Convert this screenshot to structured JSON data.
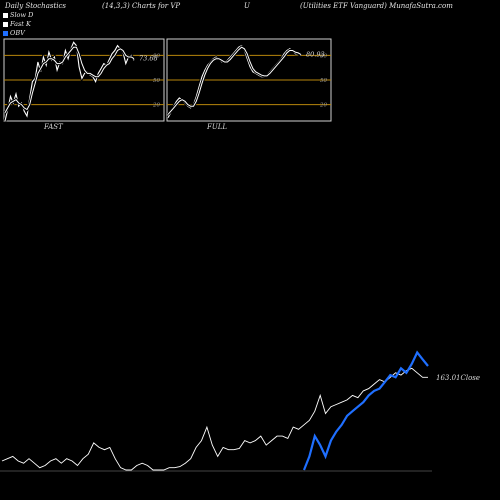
{
  "header": {
    "left": "Daily Stochastics",
    "params": "(14,3,3) Charts for VP",
    "ticker": "U",
    "right": "(Utilities ETF Vanguard) MunafaSutra.com"
  },
  "legend": [
    {
      "label": "Slow  D",
      "color": "#ffffff"
    },
    {
      "label": "Fast K",
      "color": "#ffffff"
    },
    {
      "label": "OBV",
      "color": "#1f6fff"
    }
  ],
  "chart_data": [
    {
      "type": "line",
      "title": "FAST",
      "ylim": [
        0,
        100
      ],
      "yticks": [
        "80",
        "50",
        "20"
      ],
      "reference_lines": [
        80,
        50,
        20
      ],
      "value_label": "73.68",
      "series": [
        {
          "values": [
            0,
            14,
            30,
            22,
            33,
            18,
            22,
            12,
            6,
            28,
            48,
            52,
            72,
            60,
            78,
            68,
            84,
            74,
            78,
            62,
            72,
            70,
            86,
            76,
            88,
            96,
            92,
            66,
            52,
            58,
            60,
            56,
            54,
            48,
            58,
            64,
            70,
            68,
            75,
            82,
            86,
            92,
            88,
            84,
            70,
            78,
            80,
            74
          ]
        },
        {
          "values": [
            10,
            16,
            22,
            24,
            26,
            22,
            20,
            16,
            14,
            20,
            34,
            46,
            58,
            64,
            70,
            72,
            76,
            76,
            74,
            70,
            70,
            72,
            78,
            82,
            86,
            90,
            90,
            82,
            70,
            62,
            58,
            58,
            56,
            54,
            54,
            58,
            64,
            68,
            70,
            76,
            80,
            86,
            88,
            86,
            80,
            78,
            78,
            76
          ]
        }
      ]
    },
    {
      "type": "line",
      "title": "FULL",
      "ylim": [
        0,
        100
      ],
      "yticks": [
        "80",
        "50",
        "20"
      ],
      "reference_lines": [
        80,
        50,
        20
      ],
      "value_label": "80.93",
      "series": [
        {
          "values": [
            4,
            10,
            18,
            24,
            28,
            26,
            22,
            18,
            16,
            20,
            30,
            42,
            54,
            62,
            68,
            72,
            76,
            78,
            76,
            72,
            72,
            74,
            78,
            82,
            86,
            90,
            92,
            86,
            76,
            66,
            60,
            58,
            56,
            54,
            54,
            56,
            60,
            64,
            68,
            72,
            76,
            82,
            86,
            88,
            86,
            82,
            82,
            80
          ]
        },
        {
          "values": [
            8,
            12,
            16,
            20,
            24,
            26,
            24,
            20,
            18,
            18,
            24,
            34,
            46,
            56,
            64,
            70,
            74,
            76,
            76,
            74,
            72,
            72,
            75,
            79,
            83,
            87,
            90,
            88,
            82,
            72,
            64,
            60,
            58,
            56,
            55,
            55,
            58,
            62,
            66,
            70,
            74,
            78,
            83,
            86,
            86,
            84,
            83,
            81
          ]
        }
      ]
    },
    {
      "type": "line",
      "ylim": [
        0,
        100
      ],
      "value_label": "163.01Close",
      "series": [
        {
          "values": [
            8,
            10,
            12,
            8,
            6,
            10,
            6,
            2,
            4,
            8,
            10,
            6,
            10,
            8,
            4,
            10,
            14,
            24,
            20,
            18,
            20,
            10,
            2,
            0,
            0,
            4,
            6,
            4,
            0,
            0,
            0,
            2,
            2,
            3,
            6,
            10,
            20,
            26,
            38,
            22,
            12,
            20,
            18,
            18,
            19,
            26,
            24,
            26,
            30,
            22,
            26,
            30,
            30,
            28,
            38,
            36,
            40,
            44,
            52,
            66,
            50,
            56,
            58,
            60,
            62,
            66,
            64,
            70,
            72,
            76,
            80,
            78,
            82,
            86,
            84,
            88,
            90,
            86,
            82,
            82
          ]
        },
        {
          "values": [
            null,
            null,
            null,
            null,
            null,
            null,
            null,
            null,
            null,
            null,
            null,
            null,
            null,
            null,
            null,
            null,
            null,
            null,
            null,
            null,
            null,
            null,
            null,
            null,
            null,
            null,
            null,
            null,
            null,
            null,
            null,
            null,
            null,
            null,
            null,
            null,
            null,
            null,
            null,
            null,
            null,
            null,
            null,
            null,
            null,
            null,
            null,
            null,
            null,
            null,
            null,
            null,
            null,
            null,
            null,
            null,
            0,
            12,
            30,
            22,
            12,
            26,
            34,
            40,
            48,
            52,
            56,
            60,
            66,
            70,
            72,
            78,
            84,
            82,
            90,
            86,
            94,
            104,
            98,
            92
          ]
        }
      ]
    }
  ]
}
